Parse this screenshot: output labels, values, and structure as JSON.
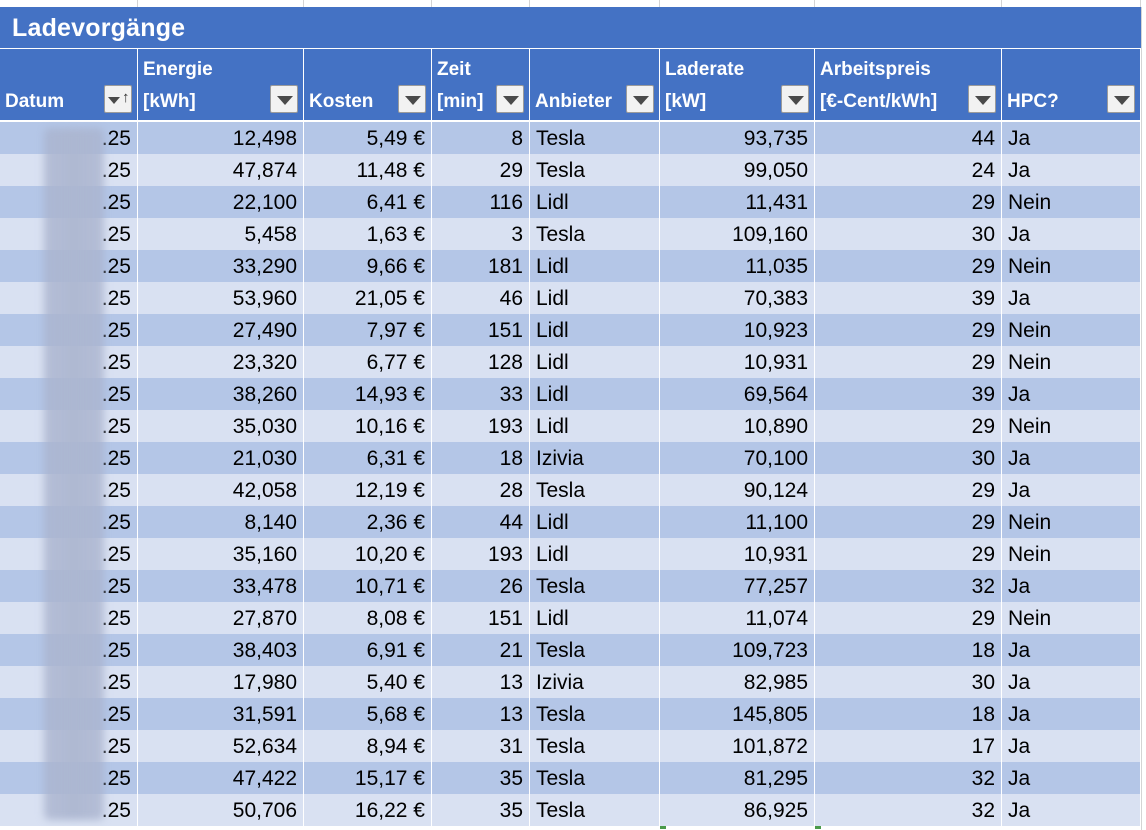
{
  "sheet": {
    "title": "Ladevorgänge"
  },
  "headers": [
    {
      "line1": "",
      "line2": "Datum",
      "filter": "sort-ascending"
    },
    {
      "line1": "Energie",
      "line2": "[kWh]",
      "filter": "dropdown"
    },
    {
      "line1": "",
      "line2": "Kosten",
      "filter": "dropdown"
    },
    {
      "line1": "Zeit",
      "line2": "[min]",
      "filter": "dropdown"
    },
    {
      "line1": "",
      "line2": "Anbieter",
      "filter": "dropdown"
    },
    {
      "line1": "Laderate",
      "line2": "[kW]",
      "filter": "dropdown"
    },
    {
      "line1": "Arbeitspreis",
      "line2": "[€-Cent/kWh]",
      "filter": "dropdown"
    },
    {
      "line1": "",
      "line2": "HPC?",
      "filter": "dropdown"
    }
  ],
  "rows": [
    {
      "datum": ".25",
      "energie": "12,498",
      "kosten": "5,49 €",
      "zeit": "8",
      "anbieter": "Tesla",
      "laderate": "93,735",
      "arbeitspreis": "44",
      "hpc": "Ja"
    },
    {
      "datum": ".25",
      "energie": "47,874",
      "kosten": "11,48 €",
      "zeit": "29",
      "anbieter": "Tesla",
      "laderate": "99,050",
      "arbeitspreis": "24",
      "hpc": "Ja"
    },
    {
      "datum": ".25",
      "energie": "22,100",
      "kosten": "6,41 €",
      "zeit": "116",
      "anbieter": "Lidl",
      "laderate": "11,431",
      "arbeitspreis": "29",
      "hpc": "Nein"
    },
    {
      "datum": ".25",
      "energie": "5,458",
      "kosten": "1,63 €",
      "zeit": "3",
      "anbieter": "Tesla",
      "laderate": "109,160",
      "arbeitspreis": "30",
      "hpc": "Ja"
    },
    {
      "datum": ".25",
      "energie": "33,290",
      "kosten": "9,66 €",
      "zeit": "181",
      "anbieter": "Lidl",
      "laderate": "11,035",
      "arbeitspreis": "29",
      "hpc": "Nein"
    },
    {
      "datum": ".25",
      "energie": "53,960",
      "kosten": "21,05 €",
      "zeit": "46",
      "anbieter": "Lidl",
      "laderate": "70,383",
      "arbeitspreis": "39",
      "hpc": "Ja"
    },
    {
      "datum": ".25",
      "energie": "27,490",
      "kosten": "7,97 €",
      "zeit": "151",
      "anbieter": "Lidl",
      "laderate": "10,923",
      "arbeitspreis": "29",
      "hpc": "Nein"
    },
    {
      "datum": ".25",
      "energie": "23,320",
      "kosten": "6,77 €",
      "zeit": "128",
      "anbieter": "Lidl",
      "laderate": "10,931",
      "arbeitspreis": "29",
      "hpc": "Nein"
    },
    {
      "datum": ".25",
      "energie": "38,260",
      "kosten": "14,93 €",
      "zeit": "33",
      "anbieter": "Lidl",
      "laderate": "69,564",
      "arbeitspreis": "39",
      "hpc": "Ja"
    },
    {
      "datum": ".25",
      "energie": "35,030",
      "kosten": "10,16 €",
      "zeit": "193",
      "anbieter": "Lidl",
      "laderate": "10,890",
      "arbeitspreis": "29",
      "hpc": "Nein"
    },
    {
      "datum": ".25",
      "energie": "21,030",
      "kosten": "6,31 €",
      "zeit": "18",
      "anbieter": "Izivia",
      "laderate": "70,100",
      "arbeitspreis": "30",
      "hpc": "Ja"
    },
    {
      "datum": ".25",
      "energie": "42,058",
      "kosten": "12,19 €",
      "zeit": "28",
      "anbieter": "Tesla",
      "laderate": "90,124",
      "arbeitspreis": "29",
      "hpc": "Ja"
    },
    {
      "datum": ".25",
      "energie": "8,140",
      "kosten": "2,36 €",
      "zeit": "44",
      "anbieter": "Lidl",
      "laderate": "11,100",
      "arbeitspreis": "29",
      "hpc": "Nein"
    },
    {
      "datum": ".25",
      "energie": "35,160",
      "kosten": "10,20 €",
      "zeit": "193",
      "anbieter": "Lidl",
      "laderate": "10,931",
      "arbeitspreis": "29",
      "hpc": "Nein"
    },
    {
      "datum": ".25",
      "energie": "33,478",
      "kosten": "10,71 €",
      "zeit": "26",
      "anbieter": "Tesla",
      "laderate": "77,257",
      "arbeitspreis": "32",
      "hpc": "Ja"
    },
    {
      "datum": ".25",
      "energie": "27,870",
      "kosten": "8,08 €",
      "zeit": "151",
      "anbieter": "Lidl",
      "laderate": "11,074",
      "arbeitspreis": "29",
      "hpc": "Nein"
    },
    {
      "datum": ".25",
      "energie": "38,403",
      "kosten": "6,91 €",
      "zeit": "21",
      "anbieter": "Tesla",
      "laderate": "109,723",
      "arbeitspreis": "18",
      "hpc": "Ja"
    },
    {
      "datum": ".25",
      "energie": "17,980",
      "kosten": "5,40 €",
      "zeit": "13",
      "anbieter": "Izivia",
      "laderate": "82,985",
      "arbeitspreis": "30",
      "hpc": "Ja"
    },
    {
      "datum": ".25",
      "energie": "31,591",
      "kosten": "5,68 €",
      "zeit": "13",
      "anbieter": "Tesla",
      "laderate": "145,805",
      "arbeitspreis": "18",
      "hpc": "Ja"
    },
    {
      "datum": ".25",
      "energie": "52,634",
      "kosten": "8,94 €",
      "zeit": "31",
      "anbieter": "Tesla",
      "laderate": "101,872",
      "arbeitspreis": "17",
      "hpc": "Ja"
    },
    {
      "datum": ".25",
      "energie": "47,422",
      "kosten": "15,17 €",
      "zeit": "35",
      "anbieter": "Tesla",
      "laderate": "81,295",
      "arbeitspreis": "32",
      "hpc": "Ja"
    },
    {
      "datum": ".25",
      "energie": "50,706",
      "kosten": "16,22 €",
      "zeit": "35",
      "anbieter": "Tesla",
      "laderate": "86,925",
      "arbeitspreis": "32",
      "hpc": "Ja"
    }
  ],
  "colors": {
    "header_blue": "#4472c4",
    "band_dark": "#b4c6e7",
    "band_light": "#d9e1f2"
  }
}
